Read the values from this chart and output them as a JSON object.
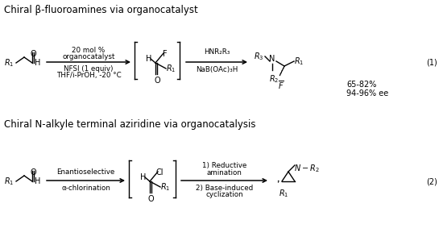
{
  "bg_color": "#ffffff",
  "fig_width": 5.5,
  "fig_height": 3.04,
  "title1": "Chiral β-fluoroamines via organocatalyst",
  "title2": "Chiral N-alkyle terminal aziridine via organocatalysis",
  "r1_cond1": "20 mol %",
  "r1_cond2": "organocatalyst",
  "r1_cond3": "NFSI (1 equiv)",
  "r1_cond4": "THF/i-PrOH, -20 °C",
  "r1_reag1": "HNR₂R₃",
  "r1_reag2": "NaB(OAc)₃H",
  "r1_yield": "65-82%",
  "r1_ee": "94-96% ee",
  "r1_label": "(1)",
  "r2_cond1": "Enantioselective",
  "r2_cond2": "α-chlorination",
  "r2_reag1": "1) Reductive",
  "r2_reag2": "amination",
  "r2_reag3": "2) Base-induced",
  "r2_reag4": "cyclization",
  "r2_label": "(2)",
  "tc": "#000000",
  "lc": "#000000"
}
